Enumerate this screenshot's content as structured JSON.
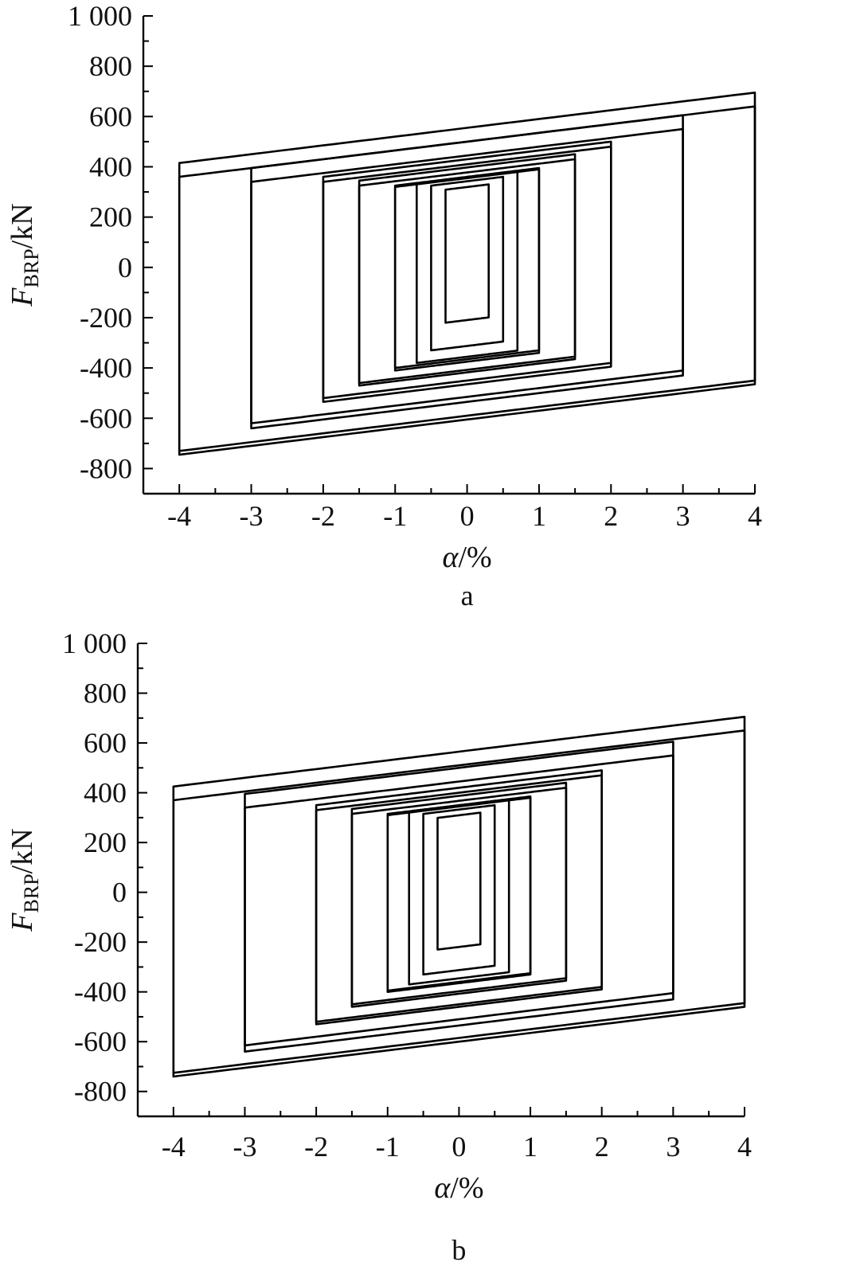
{
  "chart_data": [
    {
      "type": "line",
      "panel_label": "a",
      "xlabel_symbol": "α",
      "xlabel_unit": "/%",
      "ylabel_symbol": "F",
      "ylabel_subscript": "BRP",
      "ylabel_unit": "/kN",
      "xlim": [
        -4.5,
        4
      ],
      "ylim": [
        -900,
        1000
      ],
      "xticks": [
        -4,
        -3,
        -2,
        -1,
        0,
        1,
        2,
        3,
        4
      ],
      "xtick_labels": [
        "-4",
        "-3",
        "-2",
        "-1",
        "0",
        "1",
        "2",
        "3",
        "4"
      ],
      "yticks": [
        -800,
        -600,
        -400,
        -200,
        0,
        200,
        400,
        600,
        800,
        1000
      ],
      "ytick_labels": [
        "-800",
        "-600",
        "-400",
        "-200",
        "0",
        "200",
        "400",
        "600",
        "800",
        "1 000"
      ],
      "cycles": [
        {
          "amp": 0.3,
          "fmax": 330,
          "fmin": -220
        },
        {
          "amp": 0.5,
          "fmax": 360,
          "fmin": -330
        },
        {
          "amp": 0.7,
          "fmax": 380,
          "fmin": -380
        },
        {
          "amp": 1.0,
          "fmax": 390,
          "fmin": -400
        },
        {
          "amp": 1.0,
          "fmax": 395,
          "fmin": -410
        },
        {
          "amp": 1.5,
          "fmax": 430,
          "fmin": -460
        },
        {
          "amp": 1.5,
          "fmax": 450,
          "fmin": -470
        },
        {
          "amp": 2.0,
          "fmax": 480,
          "fmin": -520
        },
        {
          "amp": 2.0,
          "fmax": 500,
          "fmin": -535
        },
        {
          "amp": 3.0,
          "fmax": 550,
          "fmin": -620
        },
        {
          "amp": 3.0,
          "fmax": 605,
          "fmin": -640
        },
        {
          "amp": 4.0,
          "fmax": 640,
          "fmin": -730
        },
        {
          "amp": 4.0,
          "fmax": 695,
          "fmin": -745
        }
      ]
    },
    {
      "type": "line",
      "panel_label": "b",
      "xlabel_symbol": "α",
      "xlabel_unit": "/%",
      "ylabel_symbol": "F",
      "ylabel_subscript": "BRP",
      "ylabel_unit": "/kN",
      "xlim": [
        -4.5,
        4
      ],
      "ylim": [
        -900,
        1000
      ],
      "xticks": [
        -4,
        -3,
        -2,
        -1,
        0,
        1,
        2,
        3,
        4
      ],
      "xtick_labels": [
        "-4",
        "-3",
        "-2",
        "-1",
        "0",
        "1",
        "2",
        "3",
        "4"
      ],
      "yticks": [
        -800,
        -600,
        -400,
        -200,
        0,
        200,
        400,
        600,
        800,
        1000
      ],
      "ytick_labels": [
        "-800",
        "-600",
        "-400",
        "-200",
        "0",
        "200",
        "400",
        "600",
        "800",
        "1 000"
      ],
      "cycles": [
        {
          "amp": 0.3,
          "fmax": 320,
          "fmin": -230
        },
        {
          "amp": 0.5,
          "fmax": 350,
          "fmin": -330
        },
        {
          "amp": 0.7,
          "fmax": 370,
          "fmin": -370
        },
        {
          "amp": 1.0,
          "fmax": 380,
          "fmin": -395
        },
        {
          "amp": 1.0,
          "fmax": 385,
          "fmin": -400
        },
        {
          "amp": 1.5,
          "fmax": 420,
          "fmin": -450
        },
        {
          "amp": 1.5,
          "fmax": 440,
          "fmin": -460
        },
        {
          "amp": 2.0,
          "fmax": 470,
          "fmin": -520
        },
        {
          "amp": 2.0,
          "fmax": 490,
          "fmin": -530
        },
        {
          "amp": 3.0,
          "fmax": 550,
          "fmin": -615
        },
        {
          "amp": 3.0,
          "fmax": 605,
          "fmin": -640
        },
        {
          "amp": 4.0,
          "fmax": 650,
          "fmin": -725
        },
        {
          "amp": 4.0,
          "fmax": 705,
          "fmin": -740
        }
      ]
    }
  ]
}
